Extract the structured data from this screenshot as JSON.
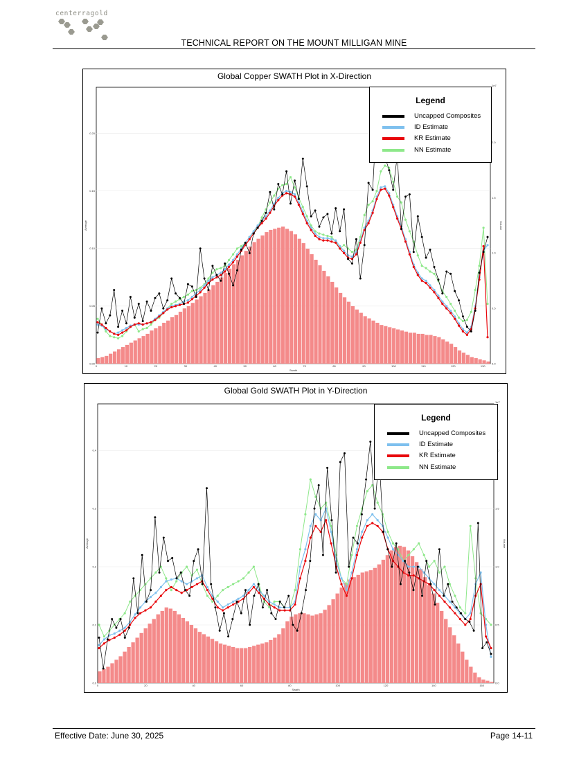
{
  "header": {
    "logo_text": "centerragold",
    "report_title": "TECHNICAL REPORT ON THE MOUNT MILLIGAN MINE"
  },
  "footer": {
    "effective_date": "Effective Date: June 30, 2025",
    "page": "Page 14-11"
  },
  "colors": {
    "uncapped": "#000000",
    "id": "#7ec0ee",
    "kr": "#e8060b",
    "nn": "#8ee88a",
    "volume_bars": "#f48a8a",
    "logo": "#9a9a90"
  },
  "chart_data": [
    {
      "type": "line",
      "title": "Global Copper SWATH Plot in X-Direction",
      "xlabel": "Swath",
      "ylabel": "Average",
      "y2label": "Volume",
      "y2_scale_note": "1e7",
      "xlim": [
        0,
        96
      ],
      "ylim": [
        0,
        0.24
      ],
      "y2lim": [
        0,
        2.5
      ],
      "xticks": [
        "0",
        "10",
        "20",
        "30",
        "40",
        "50",
        "60",
        "70",
        "80",
        "90",
        "100",
        "110",
        "120",
        "130"
      ],
      "yticks": [
        "0.00",
        "0.05",
        "0.10",
        "0.15",
        "0.20"
      ],
      "y2ticks": [
        "0.0",
        "0.5",
        "1.0",
        "1.5",
        "2.0"
      ],
      "legend": {
        "title": "Legend",
        "entries": [
          "Uncapped Composites",
          "ID Estimate",
          "KR Estimate",
          "NN Estimate"
        ],
        "placement": "top-right"
      },
      "bars": {
        "name": "Volume",
        "values": [
          0.05,
          0.06,
          0.07,
          0.09,
          0.11,
          0.13,
          0.15,
          0.17,
          0.19,
          0.21,
          0.23,
          0.25,
          0.27,
          0.3,
          0.32,
          0.34,
          0.37,
          0.39,
          0.42,
          0.44,
          0.47,
          0.5,
          0.52,
          0.55,
          0.58,
          0.61,
          0.64,
          0.67,
          0.71,
          0.74,
          0.78,
          0.82,
          0.86,
          0.9,
          0.94,
          0.98,
          1.02,
          1.06,
          1.1,
          1.13,
          1.16,
          1.19,
          1.21,
          1.22,
          1.23,
          1.24,
          1.22,
          1.2,
          1.17,
          1.13,
          1.09,
          1.04,
          0.99,
          0.94,
          0.89,
          0.84,
          0.79,
          0.74,
          0.69,
          0.64,
          0.6,
          0.56,
          0.52,
          0.49,
          0.46,
          0.43,
          0.41,
          0.39,
          0.37,
          0.35,
          0.34,
          0.33,
          0.32,
          0.31,
          0.3,
          0.29,
          0.28,
          0.28,
          0.27,
          0.27,
          0.26,
          0.26,
          0.25,
          0.24,
          0.22,
          0.2,
          0.18,
          0.15,
          0.12,
          0.1,
          0.08,
          0.06,
          0.05,
          0.04,
          0.03,
          0.02
        ]
      },
      "series": [
        {
          "name": "Uncapped Composites",
          "values": [
            0.027,
            0.048,
            0.035,
            0.042,
            0.064,
            0.032,
            0.046,
            0.035,
            0.058,
            0.04,
            0.052,
            0.037,
            0.054,
            0.046,
            0.057,
            0.061,
            0.048,
            0.055,
            0.074,
            0.061,
            0.057,
            0.052,
            0.069,
            0.067,
            0.058,
            0.1,
            0.074,
            0.064,
            0.085,
            0.077,
            0.072,
            0.087,
            0.078,
            0.068,
            0.081,
            0.099,
            0.105,
            0.096,
            0.113,
            0.118,
            0.124,
            0.131,
            0.149,
            0.134,
            0.156,
            0.147,
            0.167,
            0.139,
            0.159,
            0.143,
            0.178,
            0.154,
            0.128,
            0.133,
            0.119,
            0.127,
            0.13,
            0.113,
            0.135,
            0.115,
            0.134,
            0.091,
            0.087,
            0.108,
            0.074,
            0.103,
            0.157,
            0.151,
            0.217,
            0.194,
            0.18,
            0.168,
            0.151,
            0.181,
            0.117,
            0.145,
            0.147,
            0.097,
            0.128,
            0.11,
            0.092,
            0.099,
            0.084,
            0.073,
            0.061,
            0.08,
            0.078,
            0.063,
            0.055,
            0.041,
            0.032,
            0.028,
            0.046,
            0.079,
            0.097,
            0.11
          ]
        },
        {
          "name": "ID Estimate",
          "values": [
            0.034,
            0.033,
            0.03,
            0.028,
            0.026,
            0.027,
            0.029,
            0.031,
            0.033,
            0.034,
            0.034,
            0.034,
            0.035,
            0.036,
            0.039,
            0.042,
            0.045,
            0.048,
            0.05,
            0.051,
            0.052,
            0.054,
            0.055,
            0.058,
            0.061,
            0.064,
            0.068,
            0.072,
            0.075,
            0.077,
            0.079,
            0.082,
            0.086,
            0.09,
            0.095,
            0.1,
            0.105,
            0.11,
            0.115,
            0.12,
            0.124,
            0.128,
            0.133,
            0.139,
            0.144,
            0.148,
            0.15,
            0.149,
            0.147,
            0.14,
            0.132,
            0.124,
            0.118,
            0.113,
            0.11,
            0.109,
            0.109,
            0.108,
            0.107,
            0.102,
            0.098,
            0.094,
            0.093,
            0.097,
            0.107,
            0.118,
            0.124,
            0.133,
            0.145,
            0.153,
            0.154,
            0.148,
            0.138,
            0.128,
            0.119,
            0.108,
            0.097,
            0.086,
            0.079,
            0.074,
            0.072,
            0.068,
            0.064,
            0.059,
            0.054,
            0.05,
            0.046,
            0.041,
            0.035,
            0.03,
            0.027,
            0.032,
            0.05,
            0.075,
            0.098,
            0.103
          ]
        },
        {
          "name": "KR Estimate",
          "values": [
            0.036,
            0.034,
            0.031,
            0.028,
            0.026,
            0.025,
            0.027,
            0.029,
            0.032,
            0.034,
            0.035,
            0.034,
            0.035,
            0.036,
            0.038,
            0.041,
            0.044,
            0.047,
            0.049,
            0.05,
            0.051,
            0.052,
            0.053,
            0.056,
            0.059,
            0.062,
            0.066,
            0.07,
            0.073,
            0.075,
            0.077,
            0.08,
            0.084,
            0.088,
            0.093,
            0.098,
            0.103,
            0.108,
            0.113,
            0.118,
            0.122,
            0.126,
            0.131,
            0.137,
            0.142,
            0.146,
            0.148,
            0.147,
            0.145,
            0.138,
            0.13,
            0.122,
            0.116,
            0.111,
            0.108,
            0.107,
            0.107,
            0.106,
            0.105,
            0.1,
            0.096,
            0.092,
            0.091,
            0.095,
            0.105,
            0.116,
            0.122,
            0.131,
            0.143,
            0.151,
            0.152,
            0.146,
            0.136,
            0.126,
            0.117,
            0.106,
            0.095,
            0.084,
            0.077,
            0.072,
            0.07,
            0.066,
            0.062,
            0.057,
            0.052,
            0.048,
            0.044,
            0.039,
            0.033,
            0.028,
            0.025,
            0.03,
            0.048,
            0.073,
            0.102,
            0.023
          ]
        },
        {
          "name": "NN Estimate",
          "values": [
            0.039,
            0.034,
            0.028,
            0.024,
            0.023,
            0.022,
            0.024,
            0.028,
            0.032,
            0.034,
            0.028,
            0.03,
            0.031,
            0.034,
            0.038,
            0.04,
            0.044,
            0.048,
            0.052,
            0.054,
            0.056,
            0.058,
            0.06,
            0.063,
            0.064,
            0.066,
            0.069,
            0.074,
            0.079,
            0.082,
            0.083,
            0.085,
            0.09,
            0.095,
            0.1,
            0.102,
            0.105,
            0.11,
            0.114,
            0.119,
            0.127,
            0.134,
            0.14,
            0.146,
            0.152,
            0.155,
            0.156,
            0.162,
            0.153,
            0.144,
            0.136,
            0.128,
            0.12,
            0.115,
            0.113,
            0.112,
            0.111,
            0.11,
            0.106,
            0.1,
            0.103,
            0.1,
            0.097,
            0.099,
            0.11,
            0.129,
            0.138,
            0.141,
            0.15,
            0.167,
            0.172,
            0.17,
            0.158,
            0.145,
            0.14,
            0.125,
            0.115,
            0.106,
            0.094,
            0.085,
            0.083,
            0.08,
            0.078,
            0.072,
            0.063,
            0.058,
            0.052,
            0.046,
            0.04,
            0.037,
            0.038,
            0.045,
            0.064,
            0.085,
            0.118,
            0.052
          ]
        }
      ]
    },
    {
      "type": "line",
      "title": "Global Gold SWATH Plot in Y-Direction",
      "xlabel": "Swath",
      "ylabel": "Average",
      "y2label": "Volume",
      "y2_scale_note": "1e7",
      "xlim": [
        0,
        164
      ],
      "ylim": [
        0,
        0.48
      ],
      "y2lim": [
        0,
        2.4
      ],
      "xticks": [
        "0",
        "20",
        "40",
        "60",
        "80",
        "100",
        "120",
        "140",
        "160"
      ],
      "yticks": [
        "0.0",
        "0.1",
        "0.2",
        "0.3",
        "0.4"
      ],
      "y2ticks": [
        "0.0",
        "0.5",
        "1.0",
        "1.5",
        "2.0"
      ],
      "legend": {
        "title": "Legend",
        "entries": [
          "Uncapped Composites",
          "ID Estimate",
          "KR Estimate",
          "NN Estimate"
        ],
        "placement": "top-right"
      },
      "bars": {
        "name": "Volume",
        "values": [
          0.1,
          0.12,
          0.14,
          0.17,
          0.2,
          0.23,
          0.27,
          0.31,
          0.35,
          0.39,
          0.43,
          0.47,
          0.51,
          0.55,
          0.59,
          0.62,
          0.65,
          0.64,
          0.62,
          0.59,
          0.56,
          0.53,
          0.5,
          0.47,
          0.44,
          0.42,
          0.4,
          0.38,
          0.36,
          0.34,
          0.33,
          0.32,
          0.31,
          0.3,
          0.3,
          0.3,
          0.31,
          0.32,
          0.33,
          0.34,
          0.35,
          0.37,
          0.39,
          0.42,
          0.47,
          0.53,
          0.57,
          0.59,
          0.6,
          0.6,
          0.59,
          0.58,
          0.59,
          0.6,
          0.63,
          0.67,
          0.72,
          0.77,
          0.82,
          0.86,
          0.89,
          0.91,
          0.93,
          0.95,
          0.96,
          0.97,
          0.99,
          1.02,
          1.06,
          1.1,
          1.14,
          1.17,
          1.18,
          1.17,
          1.14,
          1.09,
          1.04,
          0.98,
          0.91,
          0.84,
          0.77,
          0.69,
          0.62,
          0.55,
          0.48,
          0.41,
          0.34,
          0.27,
          0.2,
          0.14,
          0.09,
          0.05,
          0.03,
          0.02,
          0.01
        ]
      },
      "series": [
        {
          "name": "Uncapped Composites",
          "values": [
            0.078,
            0.025,
            0.075,
            0.11,
            0.095,
            0.11,
            0.078,
            0.095,
            0.18,
            0.12,
            0.22,
            0.14,
            0.16,
            0.285,
            0.19,
            0.25,
            0.21,
            0.215,
            0.18,
            0.19,
            0.16,
            0.15,
            0.21,
            0.23,
            0.17,
            0.335,
            0.17,
            0.13,
            0.09,
            0.12,
            0.08,
            0.11,
            0.14,
            0.12,
            0.16,
            0.1,
            0.15,
            0.17,
            0.13,
            0.16,
            0.12,
            0.11,
            0.14,
            0.13,
            0.15,
            0.1,
            0.09,
            0.12,
            0.16,
            0.21,
            0.3,
            0.34,
            0.22,
            0.37,
            0.28,
            0.19,
            0.38,
            0.395,
            0.2,
            0.25,
            0.24,
            0.29,
            0.35,
            0.415,
            0.3,
            0.39,
            0.26,
            0.23,
            0.2,
            0.24,
            0.17,
            0.21,
            0.19,
            0.16,
            0.2,
            0.15,
            0.21,
            0.17,
            0.135,
            0.23,
            0.15,
            0.17,
            0.14,
            0.13,
            0.12,
            0.11,
            0.105,
            0.09,
            0.275,
            0.06,
            0.07,
            0.05
          ]
        },
        {
          "name": "ID Estimate",
          "values": [
            0.065,
            0.075,
            0.082,
            0.085,
            0.09,
            0.095,
            0.105,
            0.118,
            0.13,
            0.14,
            0.148,
            0.155,
            0.165,
            0.175,
            0.178,
            0.18,
            0.175,
            0.17,
            0.175,
            0.18,
            0.185,
            0.165,
            0.15,
            0.14,
            0.13,
            0.135,
            0.14,
            0.145,
            0.15,
            0.16,
            0.17,
            0.16,
            0.15,
            0.14,
            0.135,
            0.13,
            0.13,
            0.13,
            0.14,
            0.2,
            0.23,
            0.27,
            0.29,
            0.28,
            0.3,
            0.26,
            0.21,
            0.18,
            0.16,
            0.19,
            0.23,
            0.26,
            0.28,
            0.29,
            0.28,
            0.27,
            0.25,
            0.23,
            0.22,
            0.21,
            0.2,
            0.2,
            0.2,
            0.19,
            0.18,
            0.17,
            0.16,
            0.15,
            0.14,
            0.13,
            0.12,
            0.11,
            0.12,
            0.17,
            0.19,
            0.1,
            0.045
          ]
        },
        {
          "name": "KR Estimate",
          "values": [
            0.06,
            0.068,
            0.074,
            0.078,
            0.083,
            0.09,
            0.1,
            0.112,
            0.12,
            0.125,
            0.13,
            0.14,
            0.15,
            0.16,
            0.165,
            0.16,
            0.155,
            0.16,
            0.165,
            0.17,
            0.175,
            0.16,
            0.145,
            0.13,
            0.125,
            0.13,
            0.135,
            0.14,
            0.145,
            0.155,
            0.165,
            0.155,
            0.145,
            0.135,
            0.13,
            0.125,
            0.125,
            0.125,
            0.135,
            0.18,
            0.21,
            0.25,
            0.27,
            0.26,
            0.28,
            0.24,
            0.2,
            0.17,
            0.15,
            0.18,
            0.22,
            0.25,
            0.27,
            0.275,
            0.27,
            0.26,
            0.23,
            0.21,
            0.2,
            0.19,
            0.185,
            0.185,
            0.18,
            0.175,
            0.17,
            0.16,
            0.15,
            0.14,
            0.13,
            0.12,
            0.11,
            0.1,
            0.11,
            0.15,
            0.17,
            0.08,
            0.06
          ]
        },
        {
          "name": "NN Estimate",
          "values": [
            0.1,
            0.08,
            0.09,
            0.1,
            0.11,
            0.12,
            0.14,
            0.15,
            0.16,
            0.17,
            0.18,
            0.19,
            0.2,
            0.18,
            0.16,
            0.175,
            0.19,
            0.2,
            0.185,
            0.195,
            0.17,
            0.15,
            0.14,
            0.15,
            0.16,
            0.165,
            0.17,
            0.175,
            0.18,
            0.19,
            0.2,
            0.17,
            0.14,
            0.13,
            0.14,
            0.14,
            0.13,
            0.13,
            0.16,
            0.23,
            0.29,
            0.35,
            0.32,
            0.3,
            0.31,
            0.27,
            0.22,
            0.18,
            0.17,
            0.22,
            0.27,
            0.3,
            0.33,
            0.34,
            0.31,
            0.29,
            0.26,
            0.24,
            0.23,
            0.21,
            0.22,
            0.23,
            0.24,
            0.22,
            0.2,
            0.21,
            0.19,
            0.2,
            0.17,
            0.15,
            0.13,
            0.12,
            0.27,
            0.18,
            0.12,
            0.11,
            0.1
          ]
        }
      ]
    }
  ]
}
